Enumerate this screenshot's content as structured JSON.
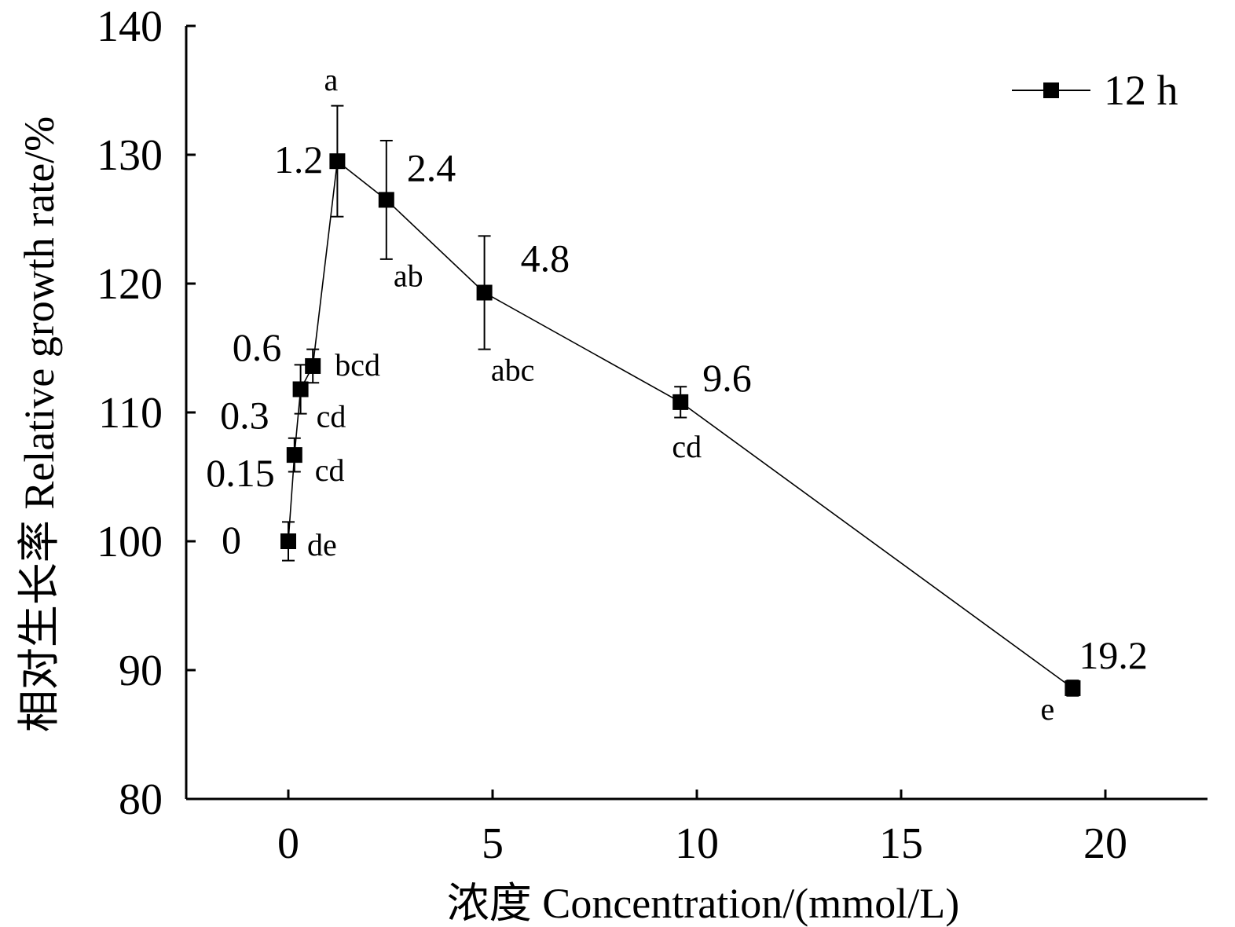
{
  "chart_data": {
    "type": "line",
    "xlabel": "浓度  Concentration/(mmol/L)",
    "ylabel": "相对生长率  Relative growth rate/%",
    "xlim": [
      -2.5,
      22.5
    ],
    "ylim": [
      80,
      140
    ],
    "xticks": [
      0,
      5,
      10,
      15,
      20
    ],
    "yticks": [
      80,
      90,
      100,
      110,
      120,
      130,
      140
    ],
    "grid": false,
    "legend_position": "top-right",
    "series": [
      {
        "name": "12 h",
        "color": "#000000",
        "marker": "square",
        "x": [
          0,
          0.15,
          0.3,
          0.6,
          1.2,
          2.4,
          4.8,
          9.6,
          19.2
        ],
        "y": [
          100.0,
          106.7,
          111.8,
          113.6,
          129.5,
          126.5,
          119.3,
          110.8,
          88.6
        ],
        "error": [
          1.5,
          1.3,
          1.9,
          1.3,
          4.3,
          4.6,
          4.4,
          1.2,
          0.6
        ],
        "point_labels": [
          "0",
          "0.15",
          "0.3",
          "0.6",
          "1.2",
          "2.4",
          "4.8",
          "9.6",
          "19.2"
        ],
        "significance": [
          "de",
          "cd",
          "cd",
          "bcd",
          "a",
          "ab",
          "abc",
          "cd",
          "e"
        ]
      }
    ]
  }
}
